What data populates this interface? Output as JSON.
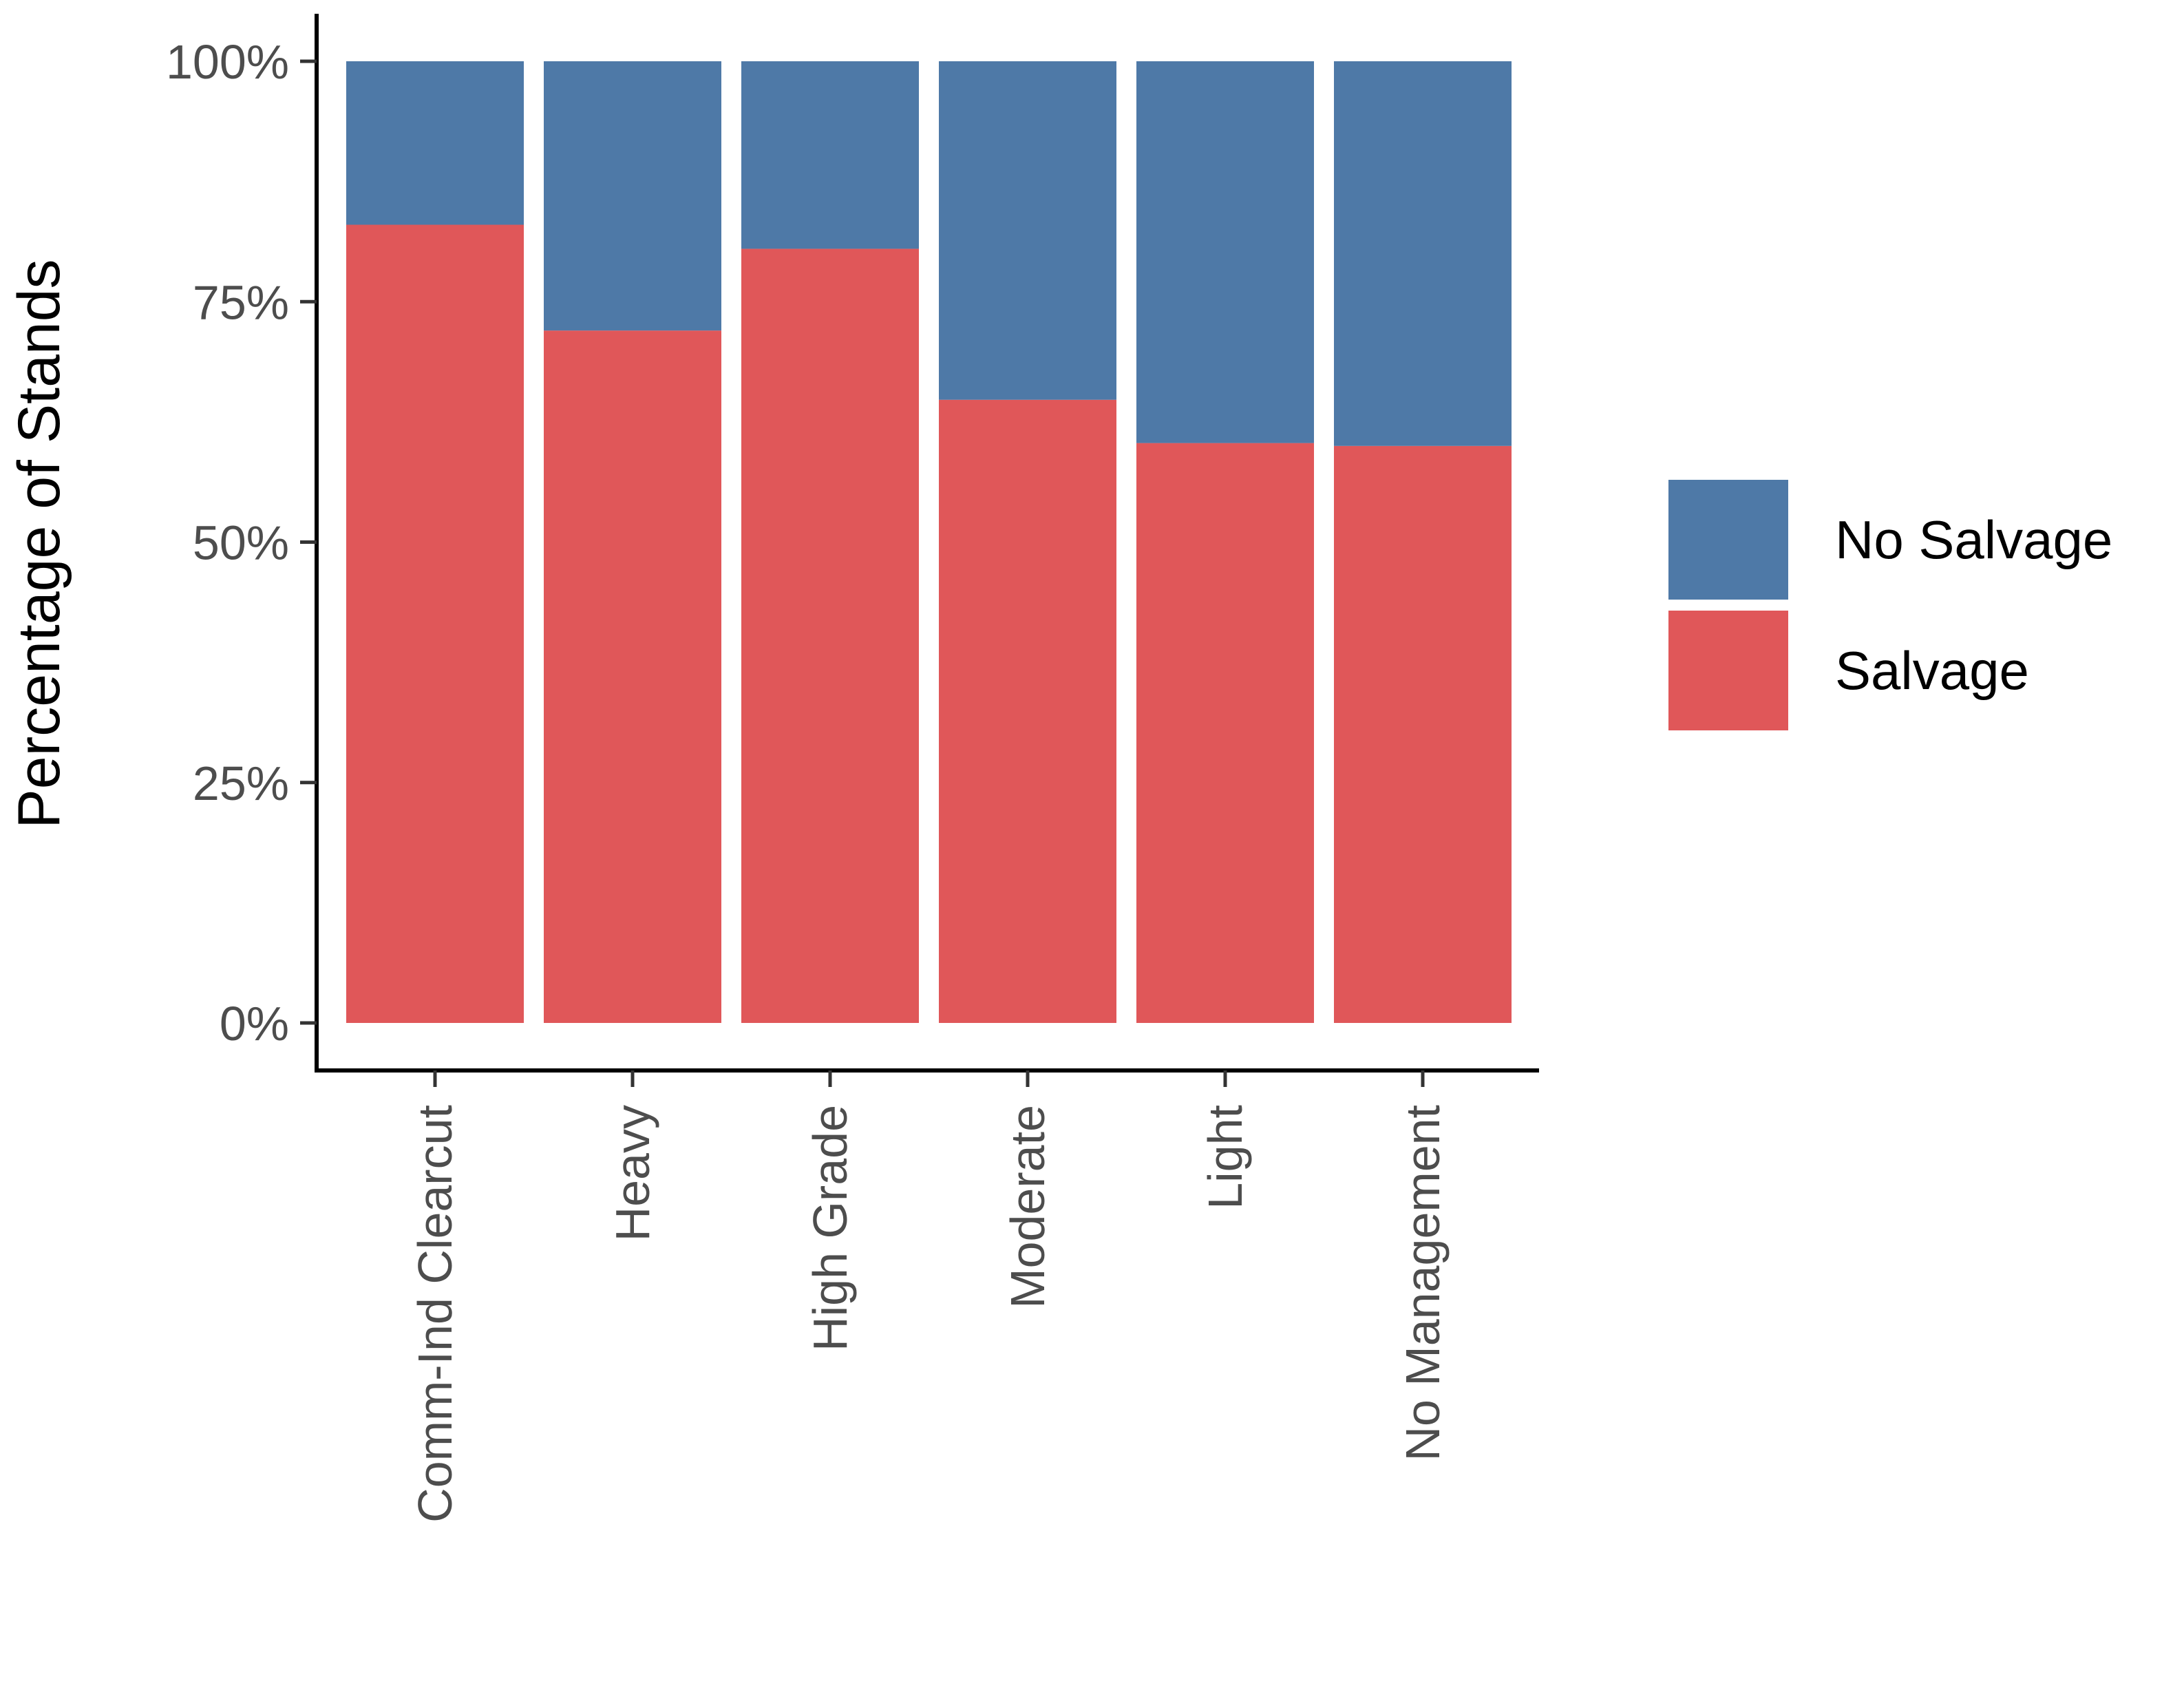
{
  "chart_data": {
    "type": "bar",
    "stacked": true,
    "percent": true,
    "categories": [
      "Comm-Ind Clearcut",
      "Heavy",
      "High Grade",
      "Moderate",
      "Light",
      "No Management"
    ],
    "series": [
      {
        "name": "Salvage",
        "color": "#e05759",
        "values": [
          83,
          72,
          80.5,
          64.8,
          60.3,
          60
        ]
      },
      {
        "name": "No Salvage",
        "color": "#4e79a7",
        "values": [
          17,
          28,
          19.5,
          35.2,
          39.7,
          40
        ]
      }
    ],
    "ylabel": "Percentage of Stands",
    "xlabel": "",
    "ylim": [
      0,
      100
    ],
    "yticks": [
      "0%",
      "25%",
      "50%",
      "75%",
      "100%"
    ],
    "ytick_values": [
      0,
      25,
      50,
      75,
      100
    ],
    "legend": {
      "position": "right",
      "order": [
        "No Salvage",
        "Salvage"
      ]
    },
    "grid": false
  }
}
